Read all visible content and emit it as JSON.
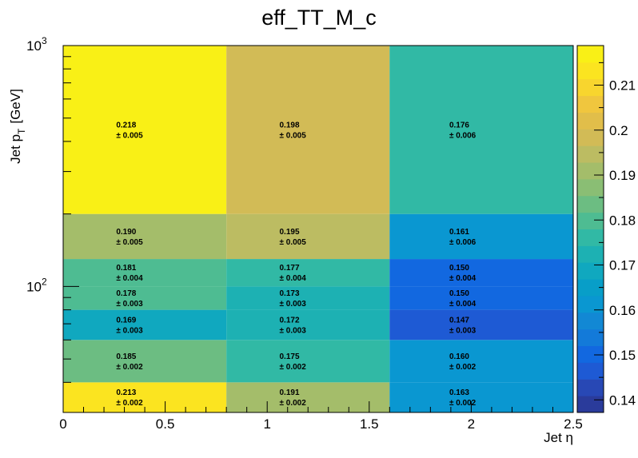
{
  "chart_data": {
    "type": "heatmap",
    "title": "eff_TT_M_c",
    "xlabel": "Jet η",
    "ylabel_main": "Jet p",
    "ylabel_sub": "T",
    "ylabel_unit": "[GeV]",
    "x_scale": "linear",
    "y_scale": "log",
    "xlim": [
      0,
      2.5
    ],
    "ylim": [
      30,
      1000
    ],
    "x_edges": [
      0,
      0.8,
      1.6,
      2.5
    ],
    "y_edges": [
      30,
      40,
      60,
      80,
      100,
      130,
      200,
      1000
    ],
    "x_ticks": [
      {
        "value": 0,
        "label": "0"
      },
      {
        "value": 0.5,
        "label": "0.5"
      },
      {
        "value": 1,
        "label": "1"
      },
      {
        "value": 1.5,
        "label": "1.5"
      },
      {
        "value": 2,
        "label": "2"
      },
      {
        "value": 2.5,
        "label": "2.5"
      }
    ],
    "y_ticks": [
      {
        "value": 100,
        "base": "10",
        "exp": "2"
      },
      {
        "value": 1000,
        "base": "10",
        "exp": "3"
      }
    ],
    "cells": [
      {
        "row": 0,
        "col": 0,
        "value": 0.213,
        "value_label": "0.213",
        "error_label": "± 0.002"
      },
      {
        "row": 0,
        "col": 1,
        "value": 0.191,
        "value_label": "0.191",
        "error_label": "± 0.002"
      },
      {
        "row": 0,
        "col": 2,
        "value": 0.163,
        "value_label": "0.163",
        "error_label": "± 0.002"
      },
      {
        "row": 1,
        "col": 0,
        "value": 0.185,
        "value_label": "0.185",
        "error_label": "± 0.002"
      },
      {
        "row": 1,
        "col": 1,
        "value": 0.175,
        "value_label": "0.175",
        "error_label": "± 0.002"
      },
      {
        "row": 1,
        "col": 2,
        "value": 0.16,
        "value_label": "0.160",
        "error_label": "± 0.002"
      },
      {
        "row": 2,
        "col": 0,
        "value": 0.169,
        "value_label": "0.169",
        "error_label": "± 0.003"
      },
      {
        "row": 2,
        "col": 1,
        "value": 0.172,
        "value_label": "0.172",
        "error_label": "± 0.003"
      },
      {
        "row": 2,
        "col": 2,
        "value": 0.147,
        "value_label": "0.147",
        "error_label": "± 0.003"
      },
      {
        "row": 3,
        "col": 0,
        "value": 0.178,
        "value_label": "0.178",
        "error_label": "± 0.003"
      },
      {
        "row": 3,
        "col": 1,
        "value": 0.173,
        "value_label": "0.173",
        "error_label": "± 0.003"
      },
      {
        "row": 3,
        "col": 2,
        "value": 0.15,
        "value_label": "0.150",
        "error_label": "± 0.004"
      },
      {
        "row": 4,
        "col": 0,
        "value": 0.181,
        "value_label": "0.181",
        "error_label": "± 0.004"
      },
      {
        "row": 4,
        "col": 1,
        "value": 0.177,
        "value_label": "0.177",
        "error_label": "± 0.004"
      },
      {
        "row": 4,
        "col": 2,
        "value": 0.15,
        "value_label": "0.150",
        "error_label": "± 0.004"
      },
      {
        "row": 5,
        "col": 0,
        "value": 0.19,
        "value_label": "0.190",
        "error_label": "± 0.005"
      },
      {
        "row": 5,
        "col": 1,
        "value": 0.195,
        "value_label": "0.195",
        "error_label": "± 0.005"
      },
      {
        "row": 5,
        "col": 2,
        "value": 0.161,
        "value_label": "0.161",
        "error_label": "± 0.006"
      },
      {
        "row": 6,
        "col": 0,
        "value": 0.218,
        "value_label": "0.218",
        "error_label": "± 0.005"
      },
      {
        "row": 6,
        "col": 1,
        "value": 0.198,
        "value_label": "0.198",
        "error_label": "± 0.005"
      },
      {
        "row": 6,
        "col": 2,
        "value": 0.176,
        "value_label": "0.176",
        "error_label": "± 0.006"
      }
    ],
    "colorbar": {
      "min": 0.1372,
      "max": 0.2188,
      "ticks": [
        {
          "value": 0.14,
          "label": "0.14"
        },
        {
          "value": 0.15,
          "label": "0.15"
        },
        {
          "value": 0.16,
          "label": "0.16"
        },
        {
          "value": 0.17,
          "label": "0.17"
        },
        {
          "value": 0.18,
          "label": "0.18"
        },
        {
          "value": 0.19,
          "label": "0.19"
        },
        {
          "value": 0.2,
          "label": "0.2"
        },
        {
          "value": 0.21,
          "label": "0.21"
        }
      ],
      "palette": [
        "#2a3b9b",
        "#2848b5",
        "#1e5ad4",
        "#1268e0",
        "#137ad9",
        "#1288d4",
        "#0a97d1",
        "#089ec8",
        "#10a8bf",
        "#1db1b3",
        "#31b9a5",
        "#4ebc92",
        "#6cbd82",
        "#8abe74",
        "#a4bd6a",
        "#bcbc62",
        "#d2bb56",
        "#e1be4a",
        "#f0c63e",
        "#f8d52e",
        "#fbe420",
        "#f9f016"
      ]
    },
    "grid": false,
    "legend": "colorbar-right"
  }
}
